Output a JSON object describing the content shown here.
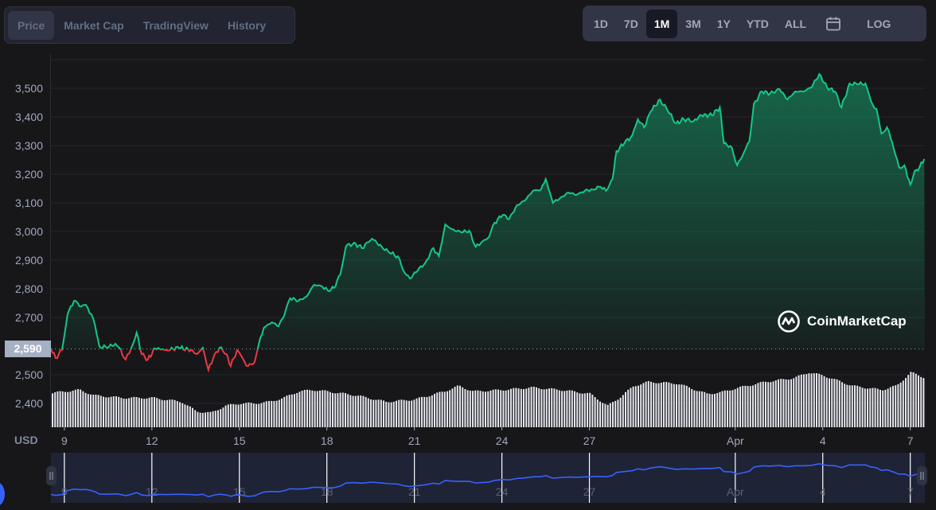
{
  "tabs": [
    {
      "label": "Price",
      "active": true
    },
    {
      "label": "Market Cap",
      "active": false
    },
    {
      "label": "TradingView",
      "active": false
    },
    {
      "label": "History",
      "active": false
    }
  ],
  "ranges": [
    {
      "label": "1D",
      "active": false
    },
    {
      "label": "7D",
      "active": false
    },
    {
      "label": "1M",
      "active": true
    },
    {
      "label": "3M",
      "active": false
    },
    {
      "label": "1Y",
      "active": false
    },
    {
      "label": "YTD",
      "active": false
    },
    {
      "label": "ALL",
      "active": false
    }
  ],
  "calendar_icon": "calendar-icon",
  "log_label": "LOG",
  "brand": "CoinMarketCap",
  "currency_label": "USD",
  "colors": {
    "up": "#16c784",
    "down": "#ea3943",
    "navigator_line": "#3861fb",
    "volume": "#e6e8ef"
  },
  "chart_data": {
    "type": "line",
    "title": "",
    "xlabel": "",
    "ylabel": "USD",
    "x_unit": "days since Mar 9",
    "xlim": [
      -0.46,
      29.5
    ],
    "ylim": [
      2300,
      3600
    ],
    "grid": true,
    "reference_price": 2590,
    "reference_label": "2,590",
    "y_ticks": [
      {
        "value": 3500,
        "label": "3,500"
      },
      {
        "value": 3400,
        "label": "3,400"
      },
      {
        "value": 3300,
        "label": "3,300"
      },
      {
        "value": 3200,
        "label": "3,200"
      },
      {
        "value": 3100,
        "label": "3,100"
      },
      {
        "value": 3000,
        "label": "3,000"
      },
      {
        "value": 2900,
        "label": "2,900"
      },
      {
        "value": 2800,
        "label": "2,800"
      },
      {
        "value": 2700,
        "label": "2,700"
      },
      {
        "value": 2500,
        "label": "2,500"
      },
      {
        "value": 2400,
        "label": "2,400"
      }
    ],
    "x_ticks": [
      {
        "value": 0,
        "label": "9"
      },
      {
        "value": 3,
        "label": "12"
      },
      {
        "value": 6,
        "label": "15"
      },
      {
        "value": 9,
        "label": "18"
      },
      {
        "value": 12,
        "label": "21"
      },
      {
        "value": 15,
        "label": "24"
      },
      {
        "value": 18,
        "label": "27"
      },
      {
        "value": 23,
        "label": "Apr"
      },
      {
        "value": 26,
        "label": "4"
      },
      {
        "value": 29,
        "label": "7"
      }
    ],
    "price": [
      [
        -0.46,
        2592
      ],
      [
        -0.3,
        2558
      ],
      [
        -0.08,
        2586
      ],
      [
        0.11,
        2711
      ],
      [
        0.33,
        2758
      ],
      [
        0.52,
        2739
      ],
      [
        0.74,
        2744
      ],
      [
        0.93,
        2711
      ],
      [
        1.06,
        2669
      ],
      [
        1.2,
        2600
      ],
      [
        1.47,
        2594
      ],
      [
        1.75,
        2608
      ],
      [
        1.88,
        2594
      ],
      [
        2.1,
        2553
      ],
      [
        2.29,
        2592
      ],
      [
        2.48,
        2647
      ],
      [
        2.65,
        2572
      ],
      [
        2.86,
        2553
      ],
      [
        3.11,
        2592
      ],
      [
        3.52,
        2586
      ],
      [
        3.93,
        2594
      ],
      [
        4.34,
        2586
      ],
      [
        4.55,
        2572
      ],
      [
        4.75,
        2594
      ],
      [
        4.94,
        2517
      ],
      [
        5.15,
        2572
      ],
      [
        5.32,
        2594
      ],
      [
        5.56,
        2572
      ],
      [
        5.7,
        2530
      ],
      [
        5.92,
        2586
      ],
      [
        6.11,
        2558
      ],
      [
        6.3,
        2530
      ],
      [
        6.52,
        2544
      ],
      [
        6.65,
        2600
      ],
      [
        6.84,
        2664
      ],
      [
        7.12,
        2683
      ],
      [
        7.34,
        2669
      ],
      [
        7.55,
        2711
      ],
      [
        7.74,
        2767
      ],
      [
        8.02,
        2758
      ],
      [
        8.29,
        2772
      ],
      [
        8.56,
        2814
      ],
      [
        8.84,
        2808
      ],
      [
        9.03,
        2794
      ],
      [
        9.24,
        2803
      ],
      [
        9.46,
        2850
      ],
      [
        9.65,
        2947
      ],
      [
        9.93,
        2961
      ],
      [
        10.2,
        2942
      ],
      [
        10.55,
        2975
      ],
      [
        10.88,
        2947
      ],
      [
        11.15,
        2925
      ],
      [
        11.43,
        2914
      ],
      [
        11.62,
        2864
      ],
      [
        11.84,
        2836
      ],
      [
        12.11,
        2864
      ],
      [
        12.38,
        2892
      ],
      [
        12.65,
        2942
      ],
      [
        12.84,
        2914
      ],
      [
        13.06,
        3025
      ],
      [
        13.28,
        3008
      ],
      [
        13.61,
        2997
      ],
      [
        13.88,
        3003
      ],
      [
        14.1,
        2947
      ],
      [
        14.29,
        2961
      ],
      [
        14.56,
        2981
      ],
      [
        14.75,
        3031
      ],
      [
        15.03,
        3058
      ],
      [
        15.25,
        3044
      ],
      [
        15.52,
        3092
      ],
      [
        15.79,
        3108
      ],
      [
        16.06,
        3142
      ],
      [
        16.34,
        3147
      ],
      [
        16.5,
        3183
      ],
      [
        16.75,
        3100
      ],
      [
        17.02,
        3119
      ],
      [
        17.29,
        3136
      ],
      [
        17.56,
        3128
      ],
      [
        17.84,
        3142
      ],
      [
        18.11,
        3147
      ],
      [
        18.38,
        3156
      ],
      [
        18.57,
        3142
      ],
      [
        18.79,
        3183
      ],
      [
        18.93,
        3281
      ],
      [
        19.2,
        3308
      ],
      [
        19.47,
        3336
      ],
      [
        19.66,
        3392
      ],
      [
        19.88,
        3364
      ],
      [
        20.1,
        3419
      ],
      [
        20.42,
        3461
      ],
      [
        20.7,
        3419
      ],
      [
        20.97,
        3378
      ],
      [
        21.24,
        3392
      ],
      [
        21.57,
        3386
      ],
      [
        21.84,
        3406
      ],
      [
        22.2,
        3406
      ],
      [
        22.47,
        3433
      ],
      [
        22.61,
        3308
      ],
      [
        22.88,
        3294
      ],
      [
        23.07,
        3231
      ],
      [
        23.29,
        3275
      ],
      [
        23.48,
        3314
      ],
      [
        23.64,
        3447
      ],
      [
        23.92,
        3489
      ],
      [
        24.19,
        3481
      ],
      [
        24.52,
        3497
      ],
      [
        24.79,
        3461
      ],
      [
        25.06,
        3489
      ],
      [
        25.33,
        3489
      ],
      [
        25.61,
        3503
      ],
      [
        25.88,
        3550
      ],
      [
        26.15,
        3503
      ],
      [
        26.42,
        3489
      ],
      [
        26.64,
        3433
      ],
      [
        26.92,
        3517
      ],
      [
        27.19,
        3514
      ],
      [
        27.46,
        3517
      ],
      [
        27.65,
        3456
      ],
      [
        27.84,
        3428
      ],
      [
        28.01,
        3342
      ],
      [
        28.2,
        3364
      ],
      [
        28.39,
        3308
      ],
      [
        28.61,
        3225
      ],
      [
        28.8,
        3231
      ],
      [
        29.0,
        3164
      ],
      [
        29.15,
        3211
      ],
      [
        29.32,
        3225
      ],
      [
        29.48,
        3253
      ]
    ],
    "volume_relative": [
      [
        -0.5,
        43
      ],
      [
        0,
        45
      ],
      [
        0.5,
        47
      ],
      [
        1,
        40
      ],
      [
        2,
        37
      ],
      [
        3,
        37
      ],
      [
        4,
        32
      ],
      [
        4.5,
        20
      ],
      [
        5,
        18
      ],
      [
        5.5,
        27
      ],
      [
        6,
        30
      ],
      [
        6.5,
        30
      ],
      [
        7,
        32
      ],
      [
        7.5,
        37
      ],
      [
        8,
        45
      ],
      [
        8.5,
        47
      ],
      [
        9,
        45
      ],
      [
        10,
        40
      ],
      [
        11,
        32
      ],
      [
        12,
        35
      ],
      [
        13,
        45
      ],
      [
        13.5,
        52
      ],
      [
        14,
        45
      ],
      [
        15,
        47
      ],
      [
        16,
        50
      ],
      [
        17,
        47
      ],
      [
        18,
        42
      ],
      [
        18.6,
        27
      ],
      [
        19,
        37
      ],
      [
        19.5,
        52
      ],
      [
        20,
        57
      ],
      [
        21,
        55
      ],
      [
        22,
        42
      ],
      [
        22.5,
        44
      ],
      [
        23,
        49
      ],
      [
        24,
        57
      ],
      [
        25,
        62
      ],
      [
        25.5,
        69
      ],
      [
        26,
        65
      ],
      [
        27,
        52
      ],
      [
        28,
        47
      ],
      [
        28.5,
        52
      ],
      [
        29,
        69
      ],
      [
        29.5,
        62
      ]
    ]
  }
}
